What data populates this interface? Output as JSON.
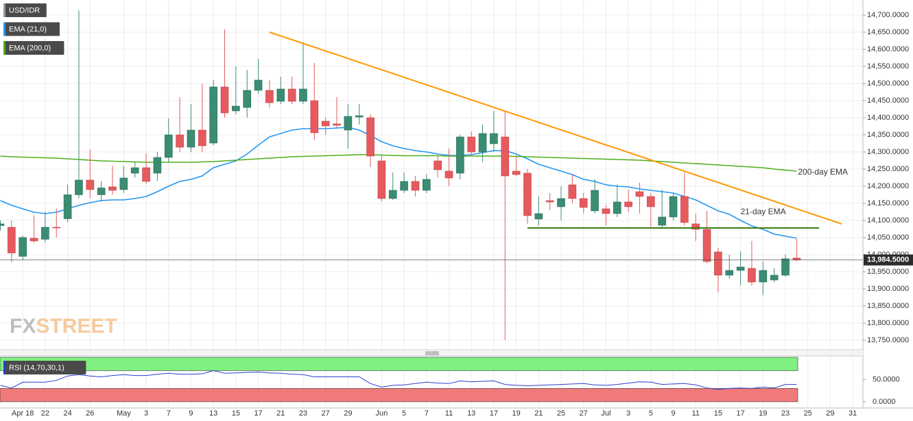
{
  "chart_data": {
    "type": "candlestick",
    "title": "USD/IDR",
    "watermark": [
      "FX",
      "STREET"
    ],
    "categories": [
      null,
      null,
      "Apr 18",
      null,
      "22",
      null,
      "24",
      null,
      "26",
      null,
      null,
      "May",
      null,
      "3",
      null,
      "7",
      null,
      "9",
      null,
      "13",
      null,
      "15",
      null,
      "17",
      null,
      "21",
      null,
      "23",
      null,
      "27",
      null,
      "29",
      null,
      null,
      "Jun",
      null,
      "5",
      null,
      "7",
      null,
      "11",
      null,
      "13",
      null,
      "17",
      null,
      "19",
      null,
      "21",
      null,
      "25",
      null,
      "27",
      null,
      "Jul",
      null,
      "3",
      null,
      "5",
      null,
      "9",
      null,
      "11",
      null,
      "15",
      null,
      "17",
      null,
      "19",
      null,
      "23",
      null,
      "25",
      null,
      "29",
      null,
      "31"
    ],
    "open": [
      14085,
      14080,
      13995,
      14048,
      14045,
      14080,
      14105,
      14175,
      14218,
      14175,
      14198,
      14190,
      14238,
      14254,
      14238,
      14284,
      14350,
      14314,
      14364,
      14326,
      14490,
      14420,
      14430,
      14480,
      14480,
      14448,
      14484,
      14448,
      14450,
      14390,
      14382,
      14364,
      14402,
      14400,
      14274,
      14164,
      14188,
      14214,
      14188,
      14274,
      14244,
      14238,
      14344,
      14300,
      14324,
      14344,
      14244,
      14238,
      14104,
      14158,
      14140,
      14204,
      14164,
      14128,
      14134,
      14120,
      14154,
      14184,
      14170,
      14086,
      14110,
      14170,
      14090,
      14074,
      14008,
      13940,
      13954,
      13960,
      13920,
      13926,
      13940,
      13990,
      null,
      null,
      null,
      null,
      null
    ],
    "high": [
      14100,
      14100,
      14055,
      14115,
      14125,
      14135,
      14205,
      14714,
      14308,
      14215,
      14260,
      14260,
      14270,
      14296,
      14300,
      14398,
      14460,
      14440,
      14500,
      14510,
      14658,
      14550,
      14540,
      14572,
      14510,
      14520,
      14520,
      14620,
      14560,
      14400,
      14460,
      14440,
      14440,
      14410,
      14290,
      14240,
      14240,
      14230,
      14235,
      14290,
      14310,
      14350,
      14360,
      14380,
      14420,
      14420,
      14290,
      14250,
      14170,
      14180,
      14200,
      14235,
      14180,
      14220,
      14145,
      14205,
      14190,
      14210,
      14180,
      14190,
      14180,
      14240,
      14120,
      14128,
      14020,
      14000,
      14010,
      14040,
      13980,
      13960,
      14000,
      14046,
      null,
      null,
      null,
      null,
      null
    ],
    "low": [
      14070,
      13978,
      13985,
      14035,
      14035,
      14050,
      14095,
      14165,
      14165,
      14155,
      14175,
      14180,
      14225,
      14206,
      14215,
      14270,
      14300,
      14300,
      14300,
      14320,
      14400,
      14410,
      14400,
      14470,
      14430,
      14440,
      14440,
      14440,
      14336,
      14350,
      14370,
      14310,
      14380,
      14256,
      14155,
      14160,
      14180,
      14170,
      14180,
      14225,
      14200,
      14220,
      14290,
      14270,
      14300,
      13750,
      14230,
      14090,
      14085,
      14130,
      14100,
      14150,
      14120,
      14120,
      14085,
      14110,
      14125,
      14120,
      14080,
      14080,
      14100,
      14085,
      14040,
      13975,
      13890,
      13930,
      13910,
      13910,
      13882,
      13920,
      13935,
      13980,
      null,
      null,
      null,
      null,
      null
    ],
    "close": [
      14090,
      14005,
      14050,
      14040,
      14080,
      14078,
      14175,
      14218,
      14190,
      14195,
      14188,
      14224,
      14254,
      14214,
      14284,
      14350,
      14314,
      14364,
      14318,
      14490,
      14414,
      14434,
      14480,
      14510,
      14444,
      14484,
      14448,
      14484,
      14356,
      14376,
      14378,
      14404,
      14406,
      14288,
      14164,
      14188,
      14214,
      14188,
      14220,
      14248,
      14224,
      14344,
      14300,
      14354,
      14354,
      14230,
      14234,
      14114,
      14120,
      14154,
      14164,
      14164,
      14138,
      14188,
      14120,
      14154,
      14140,
      14170,
      14140,
      14110,
      14170,
      14094,
      14074,
      13980,
      13940,
      13954,
      13964,
      13920,
      13954,
      13940,
      13988,
      13984.5,
      null,
      null,
      null,
      null,
      null
    ],
    "up_color": "#3a8c73",
    "down_color": "#e65a5e",
    "series": [
      {
        "name": "EMA (21,0)",
        "label": "21-day EMA",
        "color": "#2196f3",
        "values": [
          14158,
          14144,
          14134,
          14124,
          14120,
          14124,
          14134,
          14144,
          14152,
          14158,
          14160,
          14160,
          14164,
          14170,
          14184,
          14200,
          14214,
          14220,
          14230,
          14254,
          14264,
          14274,
          14294,
          14320,
          14344,
          14354,
          14364,
          14368,
          14368,
          14368,
          14370,
          14372,
          14364,
          14348,
          14330,
          14318,
          14310,
          14304,
          14300,
          14294,
          14290,
          14290,
          14292,
          14298,
          14304,
          14304,
          14294,
          14280,
          14264,
          14254,
          14244,
          14234,
          14220,
          14214,
          14204,
          14200,
          14198,
          14192,
          14188,
          14184,
          14180,
          14170,
          14160,
          14144,
          14128,
          14118,
          14100,
          14084,
          14074,
          14060,
          14054,
          14048,
          null,
          null,
          null,
          null,
          null
        ]
      },
      {
        "name": "EMA (200,0)",
        "label": "200-day EMA",
        "color": "#4caf1a",
        "values": [
          14288,
          14286,
          14285,
          14284,
          14283,
          14282,
          14280,
          14278,
          14276,
          14274,
          14273,
          14272,
          14271,
          14270,
          14270,
          14270,
          14270,
          14270,
          14271,
          14272,
          14274,
          14276,
          14278,
          14280,
          14282,
          14284,
          14286,
          14287,
          14288,
          14289,
          14290,
          14291,
          14292,
          14292,
          14291,
          14290,
          14289,
          14289,
          14289,
          14289,
          14288,
          14288,
          14288,
          14288,
          14288,
          14288,
          14287,
          14286,
          14285,
          14284,
          14283,
          14282,
          14281,
          14280,
          14279,
          14278,
          14277,
          14276,
          14274,
          14272,
          14270,
          14268,
          14266,
          14264,
          14262,
          14260,
          14258,
          14256,
          14254,
          14250,
          14247,
          14244,
          null,
          null,
          null,
          null,
          null
        ]
      }
    ],
    "trendlines": [
      {
        "color": "#ff9800",
        "x": [
          24,
          75
        ],
        "y": [
          14650,
          14090
        ]
      },
      {
        "color": "#3a7d12",
        "x": [
          47,
          73
        ],
        "y": [
          14078,
          14078
        ]
      }
    ],
    "last_price": 13984.5,
    "last_price_label": "13,984.5000",
    "ylim": [
      13724,
      14744
    ],
    "yticks": [
      {
        "value": 13750,
        "label": "13,750.0000"
      },
      {
        "value": 13800,
        "label": "13,800.0000"
      },
      {
        "value": 13850,
        "label": "13,850.0000"
      },
      {
        "value": 13900,
        "label": "13,900.0000"
      },
      {
        "value": 13950,
        "label": "13,950.0000"
      },
      {
        "value": 14000,
        "label": "14,000.0000"
      },
      {
        "value": 14050,
        "label": "14,050.0000"
      },
      {
        "value": 14100,
        "label": "14,100.0000"
      },
      {
        "value": 14150,
        "label": "14,150.0000"
      },
      {
        "value": 14200,
        "label": "14,200.0000"
      },
      {
        "value": 14250,
        "label": "14,250.0000"
      },
      {
        "value": 14300,
        "label": "14,300.0000"
      },
      {
        "value": 14350,
        "label": "14,350.0000"
      },
      {
        "value": 14400,
        "label": "14,400.0000"
      },
      {
        "value": 14450,
        "label": "14,450.0000"
      },
      {
        "value": 14500,
        "label": "14,500.0000"
      },
      {
        "value": 14550,
        "label": "14,550.0000"
      },
      {
        "value": 14600,
        "label": "14,600.0000"
      },
      {
        "value": 14650,
        "label": "14,650.0000"
      },
      {
        "value": 14700,
        "label": "14,700.0000"
      }
    ],
    "grid": true,
    "rsi": {
      "name": "RSI (14,70,30,1)",
      "color": "#2a3fd0",
      "overbought": 70,
      "oversold": 30,
      "overbought_color": "#80f080",
      "oversold_color": "#f07a7a",
      "values": [
        37,
        31,
        44,
        44,
        44,
        48,
        58,
        61,
        58,
        56,
        59,
        61,
        59,
        59,
        62,
        64,
        62,
        62,
        63,
        70,
        64,
        65,
        66,
        67,
        65,
        64,
        62,
        61,
        56,
        56,
        56,
        56,
        56,
        41,
        33,
        37,
        38,
        41,
        44,
        42,
        41,
        47,
        45,
        46,
        47,
        39,
        37,
        36,
        37,
        38,
        39,
        40,
        41,
        38,
        37,
        39,
        42,
        45,
        44,
        39,
        40,
        41,
        38,
        31,
        28,
        30,
        31,
        30,
        33,
        31,
        39,
        39,
        null,
        null,
        null,
        null,
        null
      ],
      "ylim": [
        -14,
        103
      ],
      "yticks": [
        {
          "value": 0,
          "label": "0.0000"
        },
        {
          "value": 50,
          "label": "50.0000"
        }
      ]
    }
  }
}
